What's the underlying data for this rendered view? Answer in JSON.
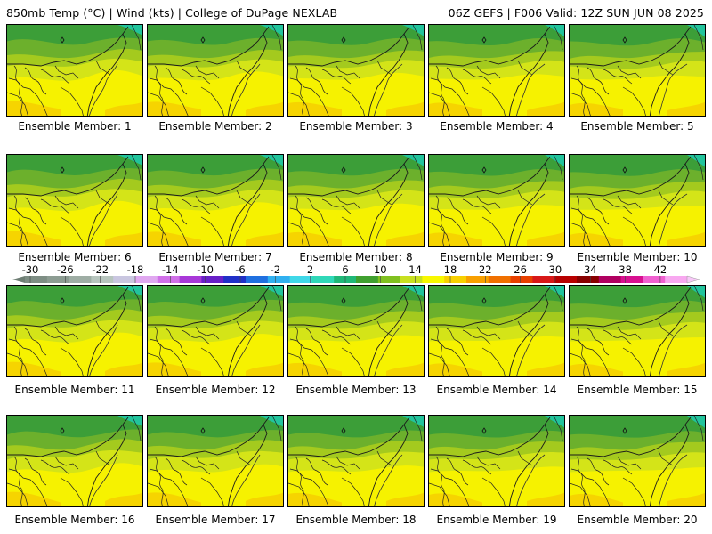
{
  "header": {
    "left": "850mb Temp (°C) | Wind (kts) | College of DuPage NEXLAB",
    "right": "06Z GEFS | F006 Valid: 12Z SUN JUN 08 2025"
  },
  "caption_prefix": "Ensemble Member: ",
  "members": [
    "1",
    "2",
    "3",
    "4",
    "5",
    "6",
    "7",
    "8",
    "9",
    "10",
    "11",
    "12",
    "13",
    "14",
    "15",
    "16",
    "17",
    "18",
    "19",
    "20"
  ],
  "colorbar": {
    "labels": [
      "-30",
      "-26",
      "-22",
      "-18",
      "-14",
      "-10",
      "-6",
      "-2",
      "2",
      "6",
      "10",
      "14",
      "18",
      "22",
      "26",
      "30",
      "34",
      "38",
      "42"
    ],
    "colors": [
      "#7e8e84",
      "#8c9c92",
      "#9eada4",
      "#b7c5be",
      "#c9c6e0",
      "#e0a8f0",
      "#d070e8",
      "#a838d8",
      "#6820c8",
      "#2030c8",
      "#2070e0",
      "#30b0f0",
      "#40d8e8",
      "#30d8b8",
      "#20b878",
      "#40a030",
      "#80c020",
      "#c8e020",
      "#f8f800",
      "#f8d000",
      "#f8a000",
      "#f07000",
      "#e84000",
      "#d81818",
      "#b80000",
      "#880000",
      "#b00060",
      "#d81090",
      "#f060d0",
      "#f8a8f0"
    ]
  },
  "map_colors": {
    "dark_green": "#3c9e38",
    "mid_green": "#6cb02c",
    "light_green": "#a4ca1e",
    "yellow_green": "#d4e418",
    "yellow": "#f6f200",
    "orange": "#f6d400",
    "teal": "#22c49c"
  }
}
